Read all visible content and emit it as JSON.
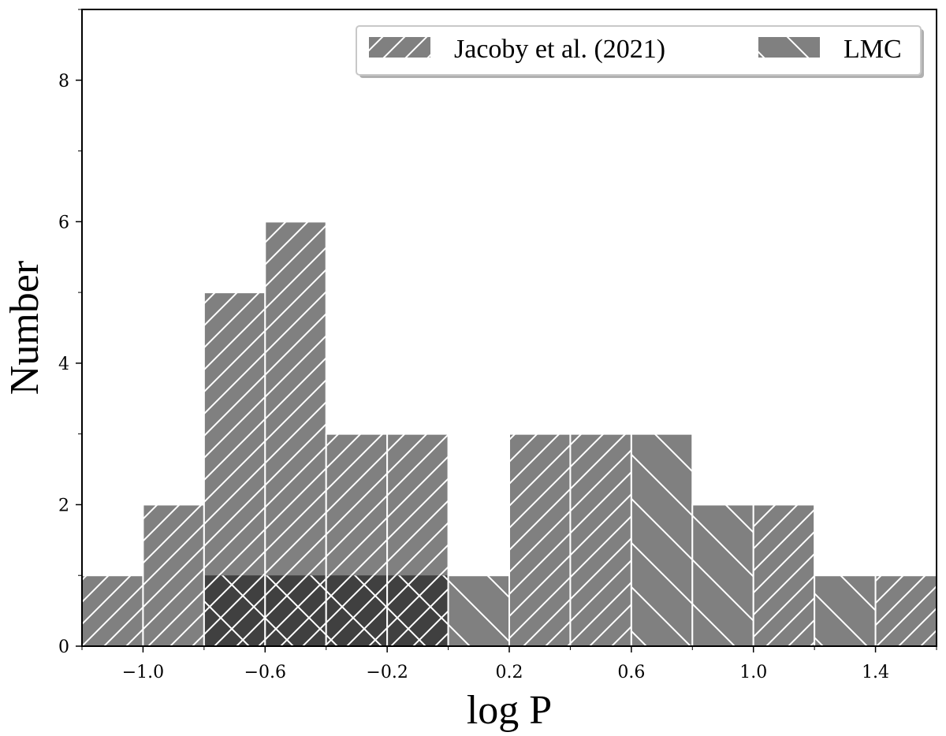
{
  "chart_data": {
    "type": "bar",
    "xlabel": "log P",
    "ylabel": "Number",
    "xlim": [
      -1.2,
      1.6
    ],
    "ylim": [
      0,
      9
    ],
    "x_ticks": [
      -1.0,
      -0.6,
      -0.2,
      0.2,
      0.6,
      1.0,
      1.4
    ],
    "x_tick_labels": [
      "−1.0",
      "−0.6",
      "−0.2",
      "0.2",
      "0.6",
      "1.0",
      "1.4"
    ],
    "y_ticks": [
      0,
      2,
      4,
      6,
      8
    ],
    "y_tick_labels": [
      "0",
      "2",
      "4",
      "6",
      "8"
    ],
    "bin_edges": [
      -1.2,
      -1.0,
      -0.8,
      -0.6,
      -0.4,
      -0.2,
      0.0,
      0.2,
      0.4,
      0.6,
      0.8,
      1.0,
      1.2,
      1.4,
      1.6
    ],
    "series": [
      {
        "name": "Jacoby et al. (2021)",
        "hatch": "forward-diagonal",
        "color": "#808080",
        "values": [
          1,
          2,
          5,
          6,
          3,
          3,
          0,
          3,
          3,
          0,
          0,
          2,
          0,
          1
        ]
      },
      {
        "name": "LMC",
        "hatch": "back-diagonal",
        "color": "#808080",
        "values": [
          0,
          0,
          1,
          1,
          1,
          1,
          1,
          0,
          0,
          3,
          2,
          0,
          1,
          0
        ]
      }
    ],
    "overlap_color": "#404040",
    "legend_position": "top-right",
    "grid": false
  }
}
